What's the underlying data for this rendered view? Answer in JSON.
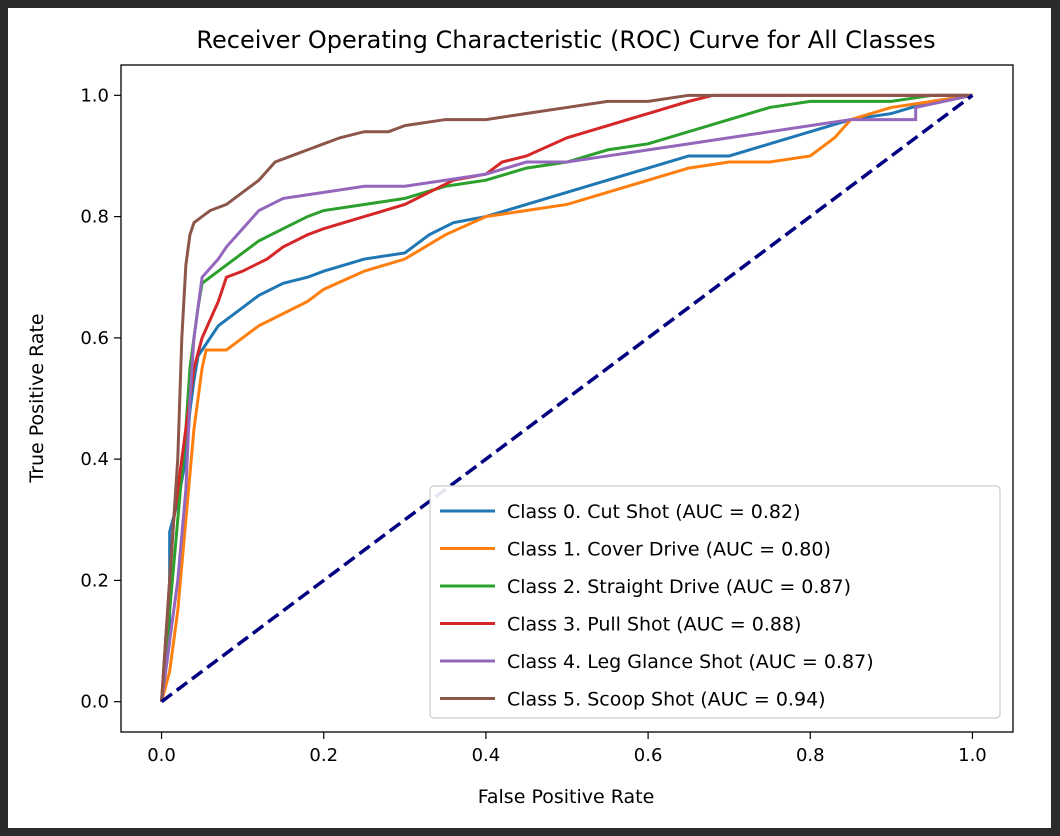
{
  "chart_data": {
    "type": "line",
    "title": "Receiver Operating Characteristic (ROC) Curve for All Classes",
    "xlabel": "False Positive Rate",
    "ylabel": "True Positive Rate",
    "xlim": [
      -0.05,
      1.05
    ],
    "ylim": [
      -0.05,
      1.05
    ],
    "xticks": [
      "0.0",
      "0.2",
      "0.4",
      "0.6",
      "0.8",
      "1.0"
    ],
    "yticks": [
      "0.0",
      "0.2",
      "0.4",
      "0.6",
      "0.8",
      "1.0"
    ],
    "grid": false,
    "legend_position": "lower-right",
    "diagonal": {
      "x": [
        0,
        1
      ],
      "y": [
        0,
        1
      ],
      "color": "#000080",
      "style": "dashed"
    },
    "series": [
      {
        "name": "Class 0. Cut Shot (AUC = 0.82)",
        "color": "#1f77b4",
        "x": [
          0,
          0.01,
          0.01,
          0.02,
          0.03,
          0.035,
          0.04,
          0.045,
          0.05,
          0.06,
          0.07,
          0.08,
          0.1,
          0.12,
          0.15,
          0.18,
          0.2,
          0.25,
          0.3,
          0.33,
          0.36,
          0.4,
          0.45,
          0.5,
          0.55,
          0.6,
          0.65,
          0.7,
          0.75,
          0.8,
          0.85,
          0.9,
          0.95,
          1.0
        ],
        "y": [
          0,
          0.1,
          0.28,
          0.33,
          0.4,
          0.48,
          0.53,
          0.57,
          0.58,
          0.6,
          0.62,
          0.63,
          0.65,
          0.67,
          0.69,
          0.7,
          0.71,
          0.73,
          0.74,
          0.77,
          0.79,
          0.8,
          0.82,
          0.84,
          0.86,
          0.88,
          0.9,
          0.9,
          0.92,
          0.94,
          0.96,
          0.97,
          0.99,
          1.0
        ]
      },
      {
        "name": "Class 1. Cover Drive (AUC = 0.80)",
        "color": "#ff7f0e",
        "x": [
          0,
          0.01,
          0.02,
          0.03,
          0.04,
          0.05,
          0.055,
          0.06,
          0.08,
          0.1,
          0.12,
          0.15,
          0.18,
          0.2,
          0.25,
          0.3,
          0.35,
          0.4,
          0.45,
          0.5,
          0.55,
          0.6,
          0.65,
          0.7,
          0.75,
          0.8,
          0.83,
          0.85,
          0.9,
          0.95,
          1.0
        ],
        "y": [
          0,
          0.05,
          0.15,
          0.3,
          0.45,
          0.55,
          0.58,
          0.58,
          0.58,
          0.6,
          0.62,
          0.64,
          0.66,
          0.68,
          0.71,
          0.73,
          0.77,
          0.8,
          0.81,
          0.82,
          0.84,
          0.86,
          0.88,
          0.89,
          0.89,
          0.9,
          0.93,
          0.96,
          0.98,
          0.99,
          1.0
        ]
      },
      {
        "name": "Class 2. Straight Drive (AUC = 0.87)",
        "color": "#2ca02c",
        "x": [
          0,
          0.01,
          0.02,
          0.03,
          0.035,
          0.04,
          0.045,
          0.05,
          0.06,
          0.08,
          0.1,
          0.12,
          0.15,
          0.18,
          0.2,
          0.25,
          0.3,
          0.35,
          0.4,
          0.45,
          0.5,
          0.55,
          0.6,
          0.65,
          0.7,
          0.75,
          0.8,
          0.85,
          0.9,
          0.95,
          1.0
        ],
        "y": [
          0,
          0.15,
          0.3,
          0.45,
          0.55,
          0.6,
          0.65,
          0.69,
          0.7,
          0.72,
          0.74,
          0.76,
          0.78,
          0.8,
          0.81,
          0.82,
          0.83,
          0.85,
          0.86,
          0.88,
          0.89,
          0.91,
          0.92,
          0.94,
          0.96,
          0.98,
          0.99,
          0.99,
          0.99,
          1.0,
          1.0
        ]
      },
      {
        "name": "Class 3. Pull Shot (AUC = 0.88)",
        "color": "#d62728",
        "x": [
          0,
          0.005,
          0.01,
          0.015,
          0.02,
          0.03,
          0.04,
          0.05,
          0.06,
          0.07,
          0.08,
          0.1,
          0.13,
          0.15,
          0.18,
          0.2,
          0.25,
          0.3,
          0.33,
          0.36,
          0.4,
          0.42,
          0.45,
          0.5,
          0.55,
          0.6,
          0.65,
          0.68,
          0.7,
          0.75,
          0.8,
          0.9,
          1.0
        ],
        "y": [
          0,
          0.1,
          0.2,
          0.3,
          0.35,
          0.45,
          0.55,
          0.6,
          0.63,
          0.66,
          0.7,
          0.71,
          0.73,
          0.75,
          0.77,
          0.78,
          0.8,
          0.82,
          0.84,
          0.86,
          0.87,
          0.89,
          0.9,
          0.93,
          0.95,
          0.97,
          0.99,
          1.0,
          1.0,
          1.0,
          1.0,
          1.0,
          1.0
        ]
      },
      {
        "name": "Class 4. Leg Glance Shot (AUC = 0.87)",
        "color": "#9467bd",
        "x": [
          0,
          0.01,
          0.02,
          0.03,
          0.035,
          0.04,
          0.045,
          0.05,
          0.07,
          0.08,
          0.1,
          0.12,
          0.15,
          0.2,
          0.25,
          0.3,
          0.35,
          0.4,
          0.45,
          0.5,
          0.55,
          0.6,
          0.65,
          0.7,
          0.75,
          0.8,
          0.85,
          0.9,
          0.93,
          0.93,
          1.0
        ],
        "y": [
          0,
          0.1,
          0.2,
          0.35,
          0.5,
          0.6,
          0.65,
          0.7,
          0.73,
          0.75,
          0.78,
          0.81,
          0.83,
          0.84,
          0.85,
          0.85,
          0.86,
          0.87,
          0.89,
          0.89,
          0.9,
          0.91,
          0.92,
          0.93,
          0.94,
          0.95,
          0.96,
          0.96,
          0.96,
          0.98,
          1.0
        ]
      },
      {
        "name": "Class 5. Scoop Shot (AUC = 0.94)",
        "color": "#8c564b",
        "x": [
          0,
          0.01,
          0.015,
          0.02,
          0.025,
          0.03,
          0.035,
          0.04,
          0.05,
          0.06,
          0.08,
          0.1,
          0.12,
          0.14,
          0.16,
          0.18,
          0.2,
          0.22,
          0.25,
          0.28,
          0.3,
          0.35,
          0.4,
          0.45,
          0.5,
          0.55,
          0.6,
          0.65,
          0.7,
          0.75,
          0.8,
          0.9,
          1.0
        ],
        "y": [
          0,
          0.2,
          0.3,
          0.4,
          0.6,
          0.72,
          0.77,
          0.79,
          0.8,
          0.81,
          0.82,
          0.84,
          0.86,
          0.89,
          0.9,
          0.91,
          0.92,
          0.93,
          0.94,
          0.94,
          0.95,
          0.96,
          0.96,
          0.97,
          0.98,
          0.99,
          0.99,
          1.0,
          1.0,
          1.0,
          1.0,
          1.0,
          1.0
        ]
      }
    ]
  }
}
